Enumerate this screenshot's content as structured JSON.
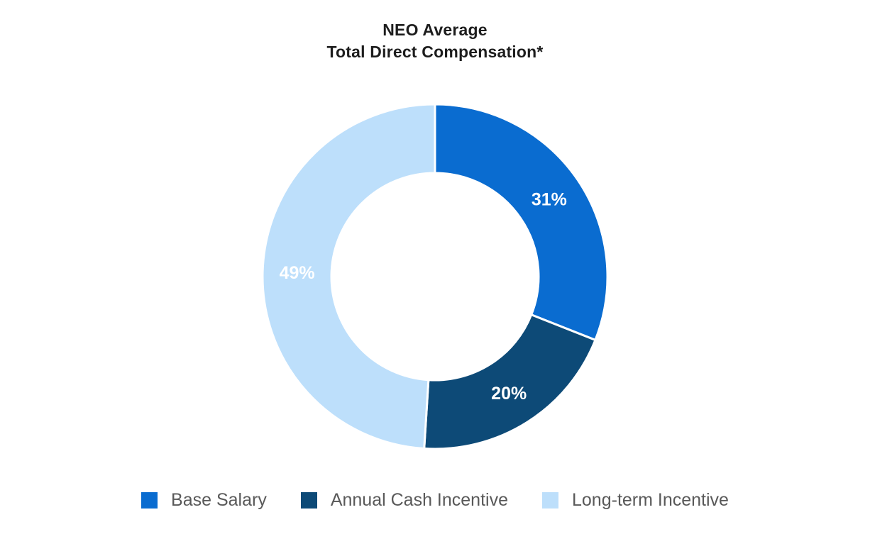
{
  "page": {
    "background_color": "#ffffff"
  },
  "chart_data": {
    "type": "pie",
    "subtype": "donut",
    "title": "NEO Average\nTotal Direct Compensation*",
    "title_lines": [
      "NEO Average",
      "Total Direct Compensation*"
    ],
    "categories": [
      "Base Salary",
      "Annual Cash Incentive",
      "Long-term Incentive"
    ],
    "values": [
      31,
      20,
      49
    ],
    "unit": "%",
    "slice_labels": [
      "31%",
      "20%",
      "49%"
    ],
    "colors": [
      "#0a6cd0",
      "#0d4a77",
      "#bddffb"
    ],
    "slice_label_color": "#ffffff",
    "separator_color": "#ffffff",
    "start_angle_deg": 0,
    "direction": "clockwise",
    "inner_radius_ratio": 0.6,
    "legend_position": "bottom",
    "legend": [
      {
        "label": "Base Salary",
        "color": "#0a6cd0"
      },
      {
        "label": "Annual Cash Incentive",
        "color": "#0d4a77"
      },
      {
        "label": "Long-term Incentive",
        "color": "#bddffb"
      }
    ],
    "title_color": "#1d1d1d",
    "legend_text_color": "#595959"
  }
}
